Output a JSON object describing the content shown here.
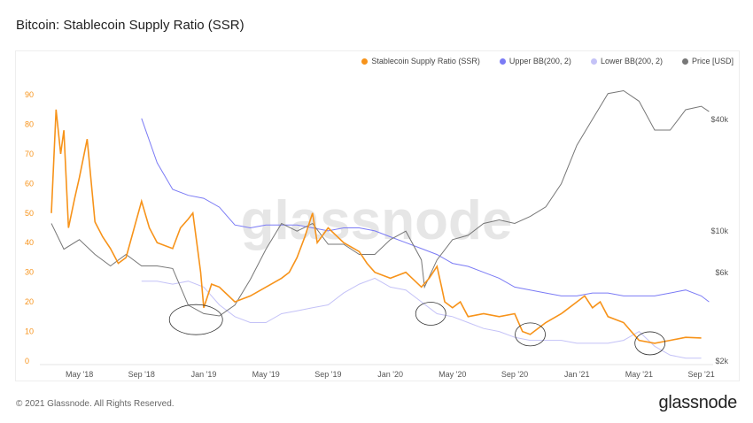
{
  "title": "Bitcoin: Stablecoin Supply Ratio (SSR)",
  "footer": "© 2021 Glassnode. All Rights Reserved.",
  "logo": "glassnode",
  "watermark": "glassnode",
  "chart_data": {
    "type": "line",
    "title": "Bitcoin: Stablecoin Supply Ratio (SSR)",
    "x_unit": "months since Jan 2018",
    "x_ticks": [
      {
        "t": 4,
        "label": "May '18"
      },
      {
        "t": 8,
        "label": "Sep '18"
      },
      {
        "t": 12,
        "label": "Jan '19"
      },
      {
        "t": 16,
        "label": "May '19"
      },
      {
        "t": 20,
        "label": "Sep '19"
      },
      {
        "t": 24,
        "label": "Jan '20"
      },
      {
        "t": 28,
        "label": "May '20"
      },
      {
        "t": 32,
        "label": "Sep '20"
      },
      {
        "t": 36,
        "label": "Jan '21"
      },
      {
        "t": 40,
        "label": "May '21"
      },
      {
        "t": 44,
        "label": "Sep '21"
      }
    ],
    "y_left": {
      "range": [
        0,
        90
      ],
      "ticks": [
        0,
        10,
        20,
        30,
        40,
        50,
        60,
        70,
        80,
        90
      ]
    },
    "y_right": {
      "scale": "log",
      "ticks": [
        {
          "v": 2000,
          "label": "$2k"
        },
        {
          "v": 6000,
          "label": "$6k"
        },
        {
          "v": 10000,
          "label": "$10k"
        },
        {
          "v": 40000,
          "label": "$40k"
        }
      ]
    },
    "series": [
      {
        "name": "Stablecoin Supply Ratio (SSR)",
        "color": "#f7931a",
        "axis": "left",
        "points": [
          [
            2.2,
            50
          ],
          [
            2.5,
            85
          ],
          [
            2.8,
            70
          ],
          [
            3,
            78
          ],
          [
            3.3,
            45
          ],
          [
            3.7,
            55
          ],
          [
            4,
            62
          ],
          [
            4.5,
            75
          ],
          [
            5,
            47
          ],
          [
            5.5,
            42
          ],
          [
            6,
            38
          ],
          [
            6.5,
            33
          ],
          [
            7,
            35
          ],
          [
            8,
            54
          ],
          [
            8.5,
            45
          ],
          [
            9,
            40
          ],
          [
            10,
            38
          ],
          [
            10.5,
            45
          ],
          [
            11,
            48
          ],
          [
            11.3,
            50
          ],
          [
            11.6,
            38
          ],
          [
            11.8,
            30
          ],
          [
            12,
            18
          ],
          [
            12.5,
            26
          ],
          [
            13,
            25
          ],
          [
            14,
            20
          ],
          [
            15,
            22
          ],
          [
            16,
            25
          ],
          [
            17,
            28
          ],
          [
            17.5,
            30
          ],
          [
            18,
            35
          ],
          [
            18.5,
            42
          ],
          [
            19,
            50
          ],
          [
            19.3,
            40
          ],
          [
            20,
            45
          ],
          [
            21,
            40
          ],
          [
            22,
            37
          ],
          [
            22.5,
            33
          ],
          [
            23,
            30
          ],
          [
            24,
            28
          ],
          [
            25,
            30
          ],
          [
            26,
            25
          ],
          [
            26.5,
            28
          ],
          [
            27,
            32
          ],
          [
            27.3,
            25
          ],
          [
            27.5,
            20
          ],
          [
            28,
            18
          ],
          [
            28.5,
            20
          ],
          [
            29,
            15
          ],
          [
            30,
            16
          ],
          [
            31,
            15
          ],
          [
            32,
            16
          ],
          [
            32.5,
            10
          ],
          [
            33,
            9
          ],
          [
            34,
            13
          ],
          [
            35,
            16
          ],
          [
            36,
            20
          ],
          [
            36.5,
            22
          ],
          [
            37,
            18
          ],
          [
            37.5,
            20
          ],
          [
            38,
            15
          ],
          [
            39,
            13
          ],
          [
            39.5,
            10
          ],
          [
            40,
            7
          ],
          [
            41,
            6
          ],
          [
            42,
            7
          ],
          [
            43,
            8
          ],
          [
            44,
            7.8
          ]
        ]
      },
      {
        "name": "Upper BB(200, 2)",
        "color": "#7b7bf5",
        "axis": "left",
        "points": [
          [
            8,
            82
          ],
          [
            9,
            67
          ],
          [
            10,
            58
          ],
          [
            11,
            56
          ],
          [
            12,
            55
          ],
          [
            13,
            52
          ],
          [
            14,
            46
          ],
          [
            15,
            45
          ],
          [
            16,
            46
          ],
          [
            17,
            46
          ],
          [
            18,
            46
          ],
          [
            19,
            45
          ],
          [
            20,
            44
          ],
          [
            21,
            45
          ],
          [
            22,
            45
          ],
          [
            23,
            44
          ],
          [
            24,
            42
          ],
          [
            25,
            40
          ],
          [
            26,
            38
          ],
          [
            27,
            36
          ],
          [
            28,
            33
          ],
          [
            29,
            32
          ],
          [
            30,
            30
          ],
          [
            31,
            28
          ],
          [
            32,
            25
          ],
          [
            33,
            24
          ],
          [
            34,
            23
          ],
          [
            35,
            22
          ],
          [
            36,
            22
          ],
          [
            37,
            23
          ],
          [
            38,
            23
          ],
          [
            39,
            22
          ],
          [
            40,
            22
          ],
          [
            41,
            22
          ],
          [
            42,
            23
          ],
          [
            43,
            24
          ],
          [
            44,
            22
          ],
          [
            44.5,
            20
          ]
        ]
      },
      {
        "name": "Lower BB(200, 2)",
        "color": "#c4c2f7",
        "axis": "left",
        "points": [
          [
            8,
            27
          ],
          [
            9,
            27
          ],
          [
            10,
            26
          ],
          [
            11,
            27
          ],
          [
            12,
            25
          ],
          [
            13,
            19
          ],
          [
            14,
            15
          ],
          [
            15,
            13
          ],
          [
            16,
            13
          ],
          [
            17,
            16
          ],
          [
            18,
            17
          ],
          [
            19,
            18
          ],
          [
            20,
            19
          ],
          [
            21,
            23
          ],
          [
            22,
            26
          ],
          [
            23,
            28
          ],
          [
            24,
            25
          ],
          [
            25,
            24
          ],
          [
            26,
            20
          ],
          [
            27,
            16
          ],
          [
            28,
            15
          ],
          [
            29,
            13
          ],
          [
            30,
            11
          ],
          [
            31,
            10
          ],
          [
            32,
            8
          ],
          [
            33,
            7
          ],
          [
            34,
            7
          ],
          [
            35,
            7
          ],
          [
            36,
            6
          ],
          [
            37,
            6
          ],
          [
            38,
            6
          ],
          [
            39,
            7
          ],
          [
            40,
            10
          ],
          [
            41,
            5
          ],
          [
            42,
            2
          ],
          [
            43,
            1
          ],
          [
            44,
            1
          ]
        ]
      },
      {
        "name": "Price [USD]",
        "color": "#777777",
        "axis": "right",
        "points": [
          [
            2.2,
            11000
          ],
          [
            3,
            8000
          ],
          [
            4,
            9000
          ],
          [
            5,
            7500
          ],
          [
            6,
            6500
          ],
          [
            7,
            7500
          ],
          [
            8,
            6500
          ],
          [
            9,
            6500
          ],
          [
            10,
            6300
          ],
          [
            11,
            4000
          ],
          [
            12,
            3600
          ],
          [
            13,
            3500
          ],
          [
            14,
            4000
          ],
          [
            15,
            5500
          ],
          [
            16,
            8000
          ],
          [
            17,
            11000
          ],
          [
            18,
            10000
          ],
          [
            19,
            11000
          ],
          [
            20,
            8500
          ],
          [
            21,
            8500
          ],
          [
            22,
            7500
          ],
          [
            23,
            7500
          ],
          [
            24,
            9000
          ],
          [
            25,
            10000
          ],
          [
            26,
            7000
          ],
          [
            26.2,
            5000
          ],
          [
            27,
            7000
          ],
          [
            28,
            9000
          ],
          [
            29,
            9500
          ],
          [
            30,
            11000
          ],
          [
            31,
            11500
          ],
          [
            32,
            11000
          ],
          [
            33,
            12000
          ],
          [
            34,
            13500
          ],
          [
            35,
            18000
          ],
          [
            36,
            29000
          ],
          [
            37,
            40000
          ],
          [
            38,
            55000
          ],
          [
            39,
            57000
          ],
          [
            40,
            50000
          ],
          [
            41,
            35000
          ],
          [
            42,
            35000
          ],
          [
            43,
            45000
          ],
          [
            44,
            47000
          ],
          [
            44.5,
            44000
          ]
        ]
      }
    ],
    "annotations": [
      {
        "type": "ellipse",
        "t": 11.5,
        "v": 14
      },
      {
        "type": "ellipse",
        "t": 26.6,
        "v": 16
      },
      {
        "type": "ellipse",
        "t": 33,
        "v": 9
      },
      {
        "type": "ellipse",
        "t": 40.7,
        "v": 6
      }
    ]
  }
}
